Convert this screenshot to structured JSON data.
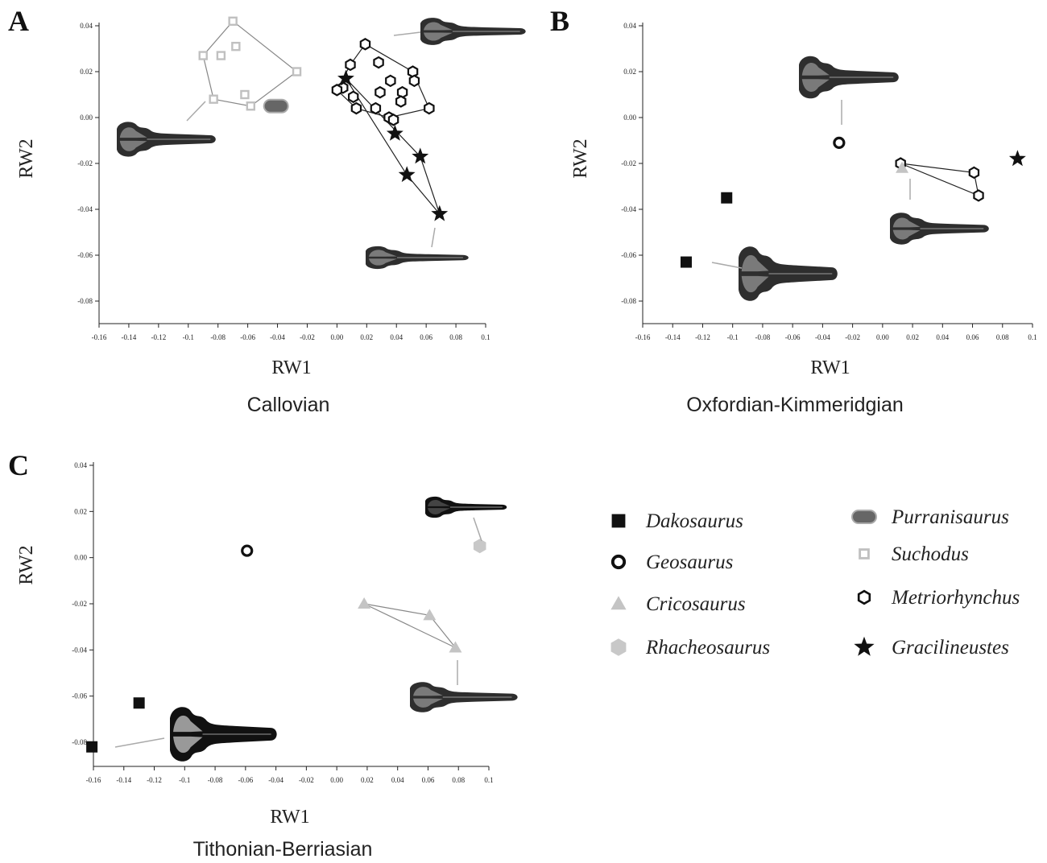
{
  "chart_data": [
    {
      "type": "scatter",
      "panel_label": "A",
      "caption": "Callovian",
      "xlabel": "RW1",
      "ylabel": "RW2",
      "xlim": [
        -0.16,
        0.1
      ],
      "ylim": [
        -0.08,
        0.04
      ],
      "x_ticks": [
        "-0.16",
        "-0.14",
        "-0.12",
        "-0.1",
        "-0.08",
        "-0.06",
        "-0.04",
        "-0.02",
        "0.00",
        "0.02",
        "0.04",
        "0.06",
        "0.08",
        "0.1"
      ],
      "y_ticks": [
        "0.04",
        "0.02",
        "0.00",
        "-0.02",
        "-0.04",
        "-0.06",
        "-0.08"
      ],
      "series": [
        {
          "name": "Suchodus",
          "points": [
            [
              -0.07,
              0.042
            ],
            [
              -0.068,
              0.031
            ],
            [
              -0.078,
              0.027
            ],
            [
              -0.09,
              0.027
            ],
            [
              -0.083,
              0.008
            ],
            [
              -0.062,
              0.01
            ],
            [
              -0.058,
              0.005
            ],
            [
              -0.027,
              0.02
            ]
          ],
          "hull": [
            [
              -0.07,
              0.042
            ],
            [
              -0.027,
              0.02
            ],
            [
              -0.058,
              0.005
            ],
            [
              -0.083,
              0.008
            ],
            [
              -0.09,
              0.027
            ]
          ]
        },
        {
          "name": "Purranisaurus",
          "points": [
            [
              -0.041,
              0.005
            ]
          ]
        },
        {
          "name": "Metriorhynchus",
          "points": [
            [
              0.019,
              0.032
            ],
            [
              0.009,
              0.023
            ],
            [
              0.028,
              0.024
            ],
            [
              0.051,
              0.02
            ],
            [
              0.052,
              0.016
            ],
            [
              0.036,
              0.016
            ],
            [
              0.044,
              0.011
            ],
            [
              0.029,
              0.011
            ],
            [
              0.004,
              0.013
            ],
            [
              0.0,
              0.012
            ],
            [
              0.011,
              0.009
            ],
            [
              0.013,
              0.004
            ],
            [
              0.026,
              0.004
            ],
            [
              0.043,
              0.007
            ],
            [
              0.062,
              0.004
            ],
            [
              0.035,
              0.0
            ],
            [
              0.038,
              -0.001
            ]
          ],
          "hull": [
            [
              0.019,
              0.032
            ],
            [
              0.051,
              0.02
            ],
            [
              0.062,
              0.004
            ],
            [
              0.035,
              0.0
            ],
            [
              0.013,
              0.004
            ],
            [
              0.0,
              0.012
            ],
            [
              0.009,
              0.023
            ]
          ]
        },
        {
          "name": "Gracilineustes",
          "points": [
            [
              0.006,
              0.017
            ],
            [
              0.039,
              -0.007
            ],
            [
              0.056,
              -0.017
            ],
            [
              0.047,
              -0.025
            ],
            [
              0.069,
              -0.042
            ]
          ],
          "hull": [
            [
              0.006,
              0.017
            ],
            [
              0.056,
              -0.017
            ],
            [
              0.069,
              -0.042
            ],
            [
              0.047,
              -0.025
            ]
          ]
        }
      ]
    },
    {
      "type": "scatter",
      "panel_label": "B",
      "caption": "Oxfordian-Kimmeridgian",
      "xlabel": "RW1",
      "ylabel": "RW2",
      "xlim": [
        -0.16,
        0.1
      ],
      "ylim": [
        -0.08,
        0.04
      ],
      "x_ticks": [
        "-0.16",
        "-0.14",
        "-0.12",
        "-0.1",
        "-0.08",
        "-0.06",
        "-0.04",
        "-0.02",
        "0.00",
        "0.02",
        "0.04",
        "0.06",
        "0.08",
        "0.1"
      ],
      "y_ticks": [
        "0.04",
        "0.02",
        "0.00",
        "-0.02",
        "-0.04",
        "-0.06",
        "-0.08"
      ],
      "series": [
        {
          "name": "Dakosaurus",
          "points": [
            [
              -0.104,
              -0.035
            ],
            [
              -0.131,
              -0.063
            ]
          ]
        },
        {
          "name": "Geosaurus",
          "points": [
            [
              -0.029,
              -0.011
            ]
          ]
        },
        {
          "name": "Metriorhynchus",
          "points": [
            [
              0.012,
              -0.02
            ],
            [
              0.061,
              -0.024
            ],
            [
              0.064,
              -0.034
            ]
          ],
          "hull": [
            [
              0.012,
              -0.02
            ],
            [
              0.061,
              -0.024
            ],
            [
              0.064,
              -0.034
            ]
          ]
        },
        {
          "name": "Cricosaurus",
          "points": [
            [
              0.013,
              -0.022
            ]
          ]
        },
        {
          "name": "Gracilineustes",
          "points": [
            [
              0.09,
              -0.018
            ]
          ]
        }
      ]
    },
    {
      "type": "scatter",
      "panel_label": "C",
      "caption": "Tithonian-Berriasian",
      "xlabel": "RW1",
      "ylabel": "RW2",
      "xlim": [
        -0.16,
        0.1
      ],
      "ylim": [
        -0.08,
        0.04
      ],
      "x_ticks": [
        "-0.16",
        "-0.14",
        "-0.12",
        "-0.1",
        "-0.08",
        "-0.06",
        "-0.04",
        "-0.02",
        "0.00",
        "0.02",
        "0.04",
        "0.06",
        "0.08",
        "0.1"
      ],
      "y_ticks": [
        "0.04",
        "0.02",
        "0.00",
        "-0.02",
        "-0.04",
        "-0.06",
        "-0.08"
      ],
      "series": [
        {
          "name": "Dakosaurus",
          "points": [
            [
              -0.161,
              -0.082
            ],
            [
              -0.13,
              -0.063
            ]
          ]
        },
        {
          "name": "Geosaurus",
          "points": [
            [
              -0.059,
              0.003
            ]
          ]
        },
        {
          "name": "Cricosaurus",
          "points": [
            [
              0.018,
              -0.02
            ],
            [
              0.061,
              -0.025
            ],
            [
              0.078,
              -0.039
            ]
          ],
          "hull": [
            [
              0.018,
              -0.02
            ],
            [
              0.061,
              -0.025
            ],
            [
              0.078,
              -0.039
            ]
          ]
        },
        {
          "name": "Rhacheosaurus",
          "points": [
            [
              0.094,
              0.005
            ]
          ]
        }
      ]
    }
  ],
  "legend": [
    {
      "name": "Dakosaurus",
      "marker": "square"
    },
    {
      "name": "Geosaurus",
      "marker": "circle"
    },
    {
      "name": "Cricosaurus",
      "marker": "triangle"
    },
    {
      "name": "Rhacheosaurus",
      "marker": "hexagon-filled"
    },
    {
      "name": "Purranisaurus",
      "marker": "pill"
    },
    {
      "name": "Suchodus",
      "marker": "open-square"
    },
    {
      "name": "Metriorhynchus",
      "marker": "hexagon-open"
    },
    {
      "name": "Gracilineustes",
      "marker": "star"
    }
  ],
  "colors": {
    "Dakosaurus": "#111111",
    "Geosaurus": "#111111",
    "Cricosaurus": "#c4c4c4",
    "Rhacheosaurus": "#c8c8c8",
    "Purranisaurus": "#666666",
    "Suchodus": "#c0c0c0",
    "Metriorhynchus": "#111111",
    "Gracilineustes": "#111111",
    "skull_dark": "#2e2e2e",
    "skull_mid": "#7a7a7a",
    "leader_line": "#aaaaaa"
  }
}
